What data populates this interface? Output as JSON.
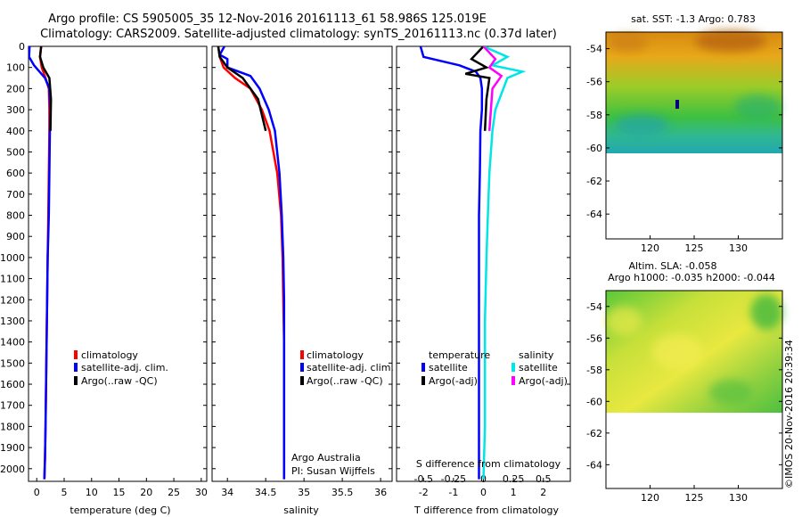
{
  "title_line1": "Argo profile: CS 5905005_35 12-Nov-2016 20161113_61 58.986S 125.019E",
  "title_line2": "Climatology: CARS2009. Satellite-adjusted climatology: synTS_20161113.nc (0.37d later)",
  "credit": "©IMOS 20-Nov-2016 20:39:34",
  "colors": {
    "clim": "#ff0000",
    "satclim": "#0000ff",
    "argo": "#000000",
    "sat_s": "#00e5e5",
    "argo_s": "#ff00ff"
  },
  "chart_data": [
    {
      "type": "line",
      "xlabel": "temperature (deg C)",
      "ylabel": "",
      "xlim": [
        -1.5,
        31
      ],
      "ylim": [
        2060,
        0
      ],
      "xticks": [
        0,
        5,
        10,
        15,
        20,
        25,
        30
      ],
      "yticks": [
        0,
        100,
        200,
        300,
        400,
        500,
        600,
        700,
        800,
        900,
        1000,
        1100,
        1200,
        1300,
        1400,
        1500,
        1600,
        1700,
        1800,
        1900,
        2000
      ],
      "legend": [
        "climatology",
        "satellite-adj. clim.",
        "Argo(..raw -QC)"
      ],
      "series": [
        {
          "name": "climatology",
          "color": "clim",
          "x": [
            0.8,
            0.6,
            0.9,
            1.6,
            2.2,
            2.3,
            2.3,
            2.2,
            2.1,
            2.0,
            1.9,
            1.8,
            1.7,
            1.6,
            1.5,
            1.4
          ],
          "y": [
            0,
            50,
            100,
            150,
            200,
            300,
            400,
            600,
            800,
            1000,
            1200,
            1400,
            1600,
            1800,
            1950,
            2050
          ]
        },
        {
          "name": "satellite-adj. clim.",
          "color": "satclim",
          "x": [
            -1.3,
            -1.4,
            -0.5,
            1.5,
            2.3,
            2.5,
            2.4,
            2.3,
            2.2,
            2.0,
            1.9,
            1.8,
            1.7,
            1.6,
            1.5,
            1.4
          ],
          "y": [
            0,
            50,
            90,
            150,
            200,
            300,
            400,
            600,
            800,
            1000,
            1200,
            1400,
            1600,
            1800,
            1950,
            2050
          ]
        },
        {
          "name": "Argo(..raw -QC)",
          "color": "argo",
          "x": [
            0.8,
            0.6,
            1.2,
            2.3,
            2.6,
            2.5
          ],
          "y": [
            0,
            50,
            100,
            150,
            250,
            400
          ]
        }
      ]
    },
    {
      "type": "line",
      "xlabel": "salinity",
      "xlim": [
        33.8,
        36.15
      ],
      "ylim": [
        2060,
        0
      ],
      "xticks": [
        34,
        34.5,
        35,
        35.5,
        36
      ],
      "legend": [
        "climatology",
        "satellite-adj. clim.",
        "Argo(..raw -QC)"
      ],
      "annotation": [
        "Argo Australia",
        "PI: Susan Wijffels"
      ],
      "series": [
        {
          "name": "climatology",
          "color": "clim",
          "x": [
            33.88,
            33.9,
            33.95,
            34.1,
            34.3,
            34.45,
            34.55,
            34.65,
            34.7,
            34.72,
            34.73,
            34.74,
            34.74,
            34.74,
            34.74
          ],
          "y": [
            0,
            50,
            100,
            150,
            200,
            300,
            400,
            600,
            800,
            1000,
            1200,
            1400,
            1600,
            1800,
            2050
          ]
        },
        {
          "name": "satellite-adj. clim.",
          "color": "satclim",
          "x": [
            33.96,
            33.9,
            34.0,
            34.0,
            34.3,
            34.42,
            34.54,
            34.62,
            34.68,
            34.71,
            34.73,
            34.74,
            34.74,
            34.74,
            34.74,
            34.74
          ],
          "y": [
            0,
            40,
            60,
            100,
            140,
            200,
            300,
            400,
            600,
            800,
            1000,
            1200,
            1400,
            1600,
            1800,
            2050
          ]
        },
        {
          "name": "Argo(..raw -QC)",
          "color": "argo",
          "x": [
            33.88,
            33.9,
            34.0,
            34.2,
            34.4,
            34.5
          ],
          "y": [
            0,
            50,
            100,
            150,
            250,
            400
          ]
        }
      ]
    },
    {
      "type": "line",
      "xlabel": "T difference from climatology",
      "xlabel_top": "S difference from climatology",
      "xlim": [
        -2.9,
        2.9
      ],
      "ylim": [
        2060,
        0
      ],
      "xticks": [
        -2,
        -1,
        0,
        1,
        2
      ],
      "xticks_top": [
        "-0.5",
        "-0.25",
        "0",
        "0.25",
        "0.5"
      ],
      "legend_headers": [
        "temperature",
        "salinity"
      ],
      "legend": [
        "satellite",
        "Argo(-adj)",
        "satellite",
        "Argo(-adj)"
      ],
      "series": [
        {
          "name": "satellite",
          "group": "temperature",
          "color": "satclim",
          "x": [
            -2.1,
            -2.0,
            -0.8,
            -0.25,
            -0.1,
            -0.05,
            -0.05,
            -0.1,
            -0.12,
            -0.15,
            -0.15,
            -0.15,
            -0.15,
            -0.15,
            -0.15,
            -0.15
          ],
          "y": [
            0,
            50,
            90,
            120,
            150,
            200,
            300,
            400,
            600,
            800,
            1000,
            1200,
            1400,
            1600,
            1800,
            2050
          ]
        },
        {
          "name": "Argo(-adj)",
          "group": "temperature",
          "color": "argo",
          "x": [
            0,
            -0.4,
            0.1,
            -0.6,
            0.2,
            0.1,
            0.05
          ],
          "y": [
            0,
            60,
            100,
            130,
            150,
            250,
            400
          ]
        },
        {
          "name": "satellite",
          "group": "salinity",
          "color": "sat_s",
          "x": [
            0,
            0.8,
            0.3,
            1.3,
            0.8,
            0.4,
            0.3,
            0.2,
            0.15,
            0.1,
            0.05,
            0.05,
            0.0
          ],
          "y": [
            0,
            50,
            90,
            120,
            150,
            300,
            400,
            600,
            800,
            1000,
            1300,
            1800,
            2050
          ]
        },
        {
          "name": "Argo(-adj)",
          "group": "salinity",
          "color": "argo_s",
          "x": [
            0,
            0.4,
            0.2,
            0.6,
            0.3,
            0.2
          ],
          "y": [
            0,
            60,
            100,
            140,
            200,
            400
          ]
        }
      ]
    },
    {
      "type": "heatmap",
      "title": "sat. SST: -1.3 Argo: 0.783",
      "xlim": [
        115,
        135
      ],
      "ylim": [
        -65.5,
        -53
      ],
      "xticks": [
        120,
        125,
        130
      ],
      "yticks": [
        -54,
        -56,
        -58,
        -60,
        -62,
        -64
      ],
      "data_lat_range": [
        -60,
        -53
      ],
      "marker": {
        "lon": 125.019,
        "lat": -58.986
      }
    },
    {
      "type": "heatmap",
      "title_lines": [
        "Altim. SLA: -0.058",
        "Argo h1000: -0.035 h2000: -0.044"
      ],
      "xlim": [
        115,
        135
      ],
      "ylim": [
        -65.5,
        -53
      ],
      "xticks": [
        120,
        125,
        130
      ],
      "yticks": [
        -54,
        -56,
        -58,
        -60,
        -62,
        -64
      ],
      "data_lat_range": [
        -60,
        -53
      ]
    }
  ]
}
